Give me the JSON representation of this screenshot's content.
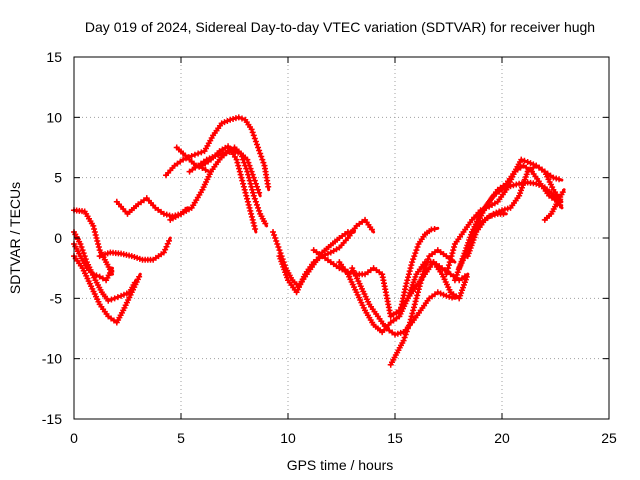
{
  "chart_data": {
    "type": "scatter",
    "title": "Day 019 of 2024, Sidereal Day-to-day VTEC variation (SDTVAR) for receiver hugh",
    "xlabel": "GPS time / hours",
    "ylabel": "SDTVAR / TECUs",
    "xlim": [
      0,
      25
    ],
    "ylim": [
      -15,
      15
    ],
    "xticks": [
      "0",
      "5",
      "10",
      "15",
      "20",
      "25"
    ],
    "yticks": [
      "15",
      "10",
      "5",
      "0",
      "-5",
      "-10",
      "-15"
    ],
    "xtick_values": [
      0,
      5,
      10,
      15,
      20,
      25
    ],
    "ytick_values": [
      15,
      10,
      5,
      0,
      -5,
      -10,
      -15
    ],
    "grid": true,
    "marker": "plus",
    "series_color": "#ff0000",
    "series": [
      {
        "x": [
          0.0,
          0.4,
          0.8,
          1.2,
          1.6,
          2.0,
          2.3,
          2.7,
          3.1
        ],
        "y": [
          -1.5,
          -2.5,
          -4.0,
          -5.5,
          -6.5,
          -7.0,
          -6.0,
          -4.5,
          -3.0
        ]
      },
      {
        "x": [
          0.0,
          0.3,
          0.6,
          1.0,
          1.3,
          1.6,
          1.9,
          2.2,
          2.6,
          2.9
        ],
        "y": [
          0.5,
          -0.5,
          -2.0,
          -3.5,
          -4.5,
          -5.2,
          -5.0,
          -4.8,
          -4.5,
          -3.5
        ]
      },
      {
        "x": [
          0.0,
          0.3,
          0.6,
          0.9,
          1.2,
          1.5,
          1.8
        ],
        "y": [
          -0.5,
          -1.5,
          -2.5,
          -3.0,
          -3.2,
          -3.5,
          -2.5
        ]
      },
      {
        "x": [
          0.0,
          0.5,
          0.9,
          1.2,
          1.5,
          1.8
        ],
        "y": [
          2.3,
          2.2,
          1.0,
          -1.0,
          -2.0,
          -3.0
        ]
      },
      {
        "x": [
          1.2,
          1.7,
          2.2,
          2.7,
          3.2,
          3.7,
          4.2,
          4.5
        ],
        "y": [
          -1.5,
          -1.2,
          -1.3,
          -1.5,
          -1.8,
          -1.8,
          -1.2,
          0.0
        ]
      },
      {
        "x": [
          2.0,
          2.5,
          3.0,
          3.4,
          3.8,
          4.2,
          4.6,
          5.0,
          5.3
        ],
        "y": [
          3.0,
          2.0,
          2.8,
          3.3,
          2.5,
          2.0,
          1.8,
          2.0,
          2.5
        ]
      },
      {
        "x": [
          4.3,
          4.7,
          5.1,
          5.5,
          5.8,
          6.1,
          6.5,
          6.9,
          7.3,
          7.7,
          8.0,
          8.3,
          8.6,
          8.9,
          9.1
        ],
        "y": [
          5.2,
          6.0,
          6.5,
          6.8,
          7.0,
          7.2,
          8.5,
          9.5,
          9.8,
          10.0,
          9.8,
          9.0,
          7.5,
          6.0,
          4.0
        ]
      },
      {
        "x": [
          4.8,
          5.1,
          5.4,
          5.7,
          6.0,
          6.3
        ],
        "y": [
          7.5,
          7.0,
          6.5,
          6.0,
          5.8,
          5.5
        ]
      },
      {
        "x": [
          5.4,
          5.8,
          6.2,
          6.6,
          7.0,
          7.4,
          7.8,
          8.1,
          8.4,
          8.7
        ],
        "y": [
          5.5,
          6.0,
          6.5,
          6.8,
          7.0,
          7.2,
          7.0,
          6.5,
          5.0,
          3.5
        ]
      },
      {
        "x": [
          4.5,
          5.0,
          5.5,
          6.0,
          6.4,
          6.8,
          7.2,
          7.5,
          7.8,
          8.1,
          8.4,
          8.7,
          9.0
        ],
        "y": [
          1.5,
          2.0,
          2.5,
          4.0,
          5.5,
          6.5,
          7.2,
          7.5,
          7.0,
          5.5,
          3.5,
          2.0,
          1.0
        ]
      },
      {
        "x": [
          6.0,
          6.4,
          6.8,
          7.2,
          7.6,
          7.9,
          8.2,
          8.5
        ],
        "y": [
          6.0,
          6.5,
          7.2,
          7.6,
          6.5,
          4.5,
          2.5,
          0.5
        ]
      },
      {
        "x": [
          9.3,
          9.6,
          9.9,
          10.2,
          10.5,
          10.8,
          11.2,
          11.6,
          12.0,
          12.4,
          12.8,
          13.1
        ],
        "y": [
          0.5,
          -1.0,
          -2.5,
          -3.5,
          -4.0,
          -3.2,
          -2.2,
          -1.2,
          -0.6,
          0.0,
          0.5,
          0.5
        ]
      },
      {
        "x": [
          9.6,
          10.0,
          10.4,
          10.8,
          11.2,
          11.6,
          12.0,
          12.4,
          12.8,
          13.2,
          13.6,
          14.0
        ],
        "y": [
          -1.5,
          -3.5,
          -4.5,
          -3.0,
          -2.0,
          -1.5,
          -1.2,
          -0.8,
          0.0,
          1.0,
          1.5,
          0.5
        ]
      },
      {
        "x": [
          11.2,
          11.6,
          12.0,
          12.4,
          12.8,
          13.2,
          13.6,
          14.0,
          14.4,
          14.8,
          15.2,
          15.6,
          16.0,
          16.4,
          16.8,
          17.2,
          17.6,
          18.0,
          18.4
        ],
        "y": [
          -1.0,
          -1.5,
          -2.0,
          -2.5,
          -2.8,
          -3.0,
          -3.0,
          -2.5,
          -3.0,
          -6.5,
          -6.0,
          -5.0,
          -4.0,
          -3.0,
          -2.0,
          -2.5,
          -3.0,
          -3.5,
          -3.0
        ]
      },
      {
        "x": [
          12.4,
          12.8,
          13.2,
          13.6,
          14.0,
          14.4,
          14.8,
          15.2,
          15.6,
          16.0,
          16.4,
          16.8,
          17.2,
          17.6,
          18.0,
          18.4
        ],
        "y": [
          -2.0,
          -3.0,
          -4.5,
          -6.0,
          -7.2,
          -7.8,
          -7.0,
          -6.5,
          -5.0,
          -3.0,
          -2.0,
          -2.0,
          -3.0,
          -4.5,
          -5.0,
          -3.0
        ]
      },
      {
        "x": [
          13.0,
          13.4,
          13.8,
          14.2,
          14.6,
          15.0,
          15.4,
          15.8,
          16.2,
          16.6,
          17.0,
          17.4,
          17.8
        ],
        "y": [
          -2.5,
          -4.0,
          -5.5,
          -6.5,
          -7.5,
          -8.0,
          -7.8,
          -7.0,
          -6.0,
          -5.0,
          -4.5,
          -4.8,
          -5.0
        ]
      },
      {
        "x": [
          14.8,
          15.1,
          15.4,
          15.7,
          16.0,
          16.3,
          16.6,
          17.0,
          17.4,
          17.8
        ],
        "y": [
          -10.5,
          -9.5,
          -8.5,
          -7.0,
          -5.0,
          -3.0,
          -1.5,
          -1.0,
          -1.5,
          -2.0
        ]
      },
      {
        "x": [
          15.2,
          15.5,
          15.8,
          16.1,
          16.4,
          16.7,
          17.0
        ],
        "y": [
          -6.5,
          -4.0,
          -2.0,
          -0.5,
          0.3,
          0.7,
          0.8
        ]
      },
      {
        "x": [
          17.4,
          17.8,
          18.2,
          18.6,
          19.0,
          19.4,
          19.8,
          20.2,
          20.6,
          20.9,
          21.2,
          21.6,
          22.0,
          22.4,
          22.8
        ],
        "y": [
          -3.0,
          -0.5,
          0.5,
          1.5,
          2.3,
          2.6,
          3.0,
          4.0,
          5.5,
          6.5,
          6.3,
          6.0,
          5.5,
          5.0,
          4.8
        ]
      },
      {
        "x": [
          17.8,
          18.2,
          18.6,
          19.0,
          19.4,
          19.8,
          20.2,
          20.6,
          21.0,
          21.4,
          21.8,
          22.2,
          22.6,
          22.8
        ],
        "y": [
          -3.5,
          -1.5,
          0.5,
          2.0,
          3.0,
          4.0,
          4.5,
          5.5,
          6.0,
          5.5,
          4.5,
          3.5,
          3.0,
          2.5
        ]
      },
      {
        "x": [
          18.0,
          18.4,
          18.8,
          19.2,
          19.6,
          20.0,
          20.4,
          20.8,
          21.2,
          21.6,
          22.0,
          22.4,
          22.8
        ],
        "y": [
          -2.5,
          -1.0,
          1.0,
          2.5,
          3.5,
          4.0,
          4.3,
          4.5,
          4.6,
          4.5,
          4.2,
          3.5,
          2.5
        ]
      },
      {
        "x": [
          18.4,
          18.8,
          19.2,
          19.6,
          20.0,
          20.4,
          20.8,
          21.2,
          21.6,
          22.0,
          22.4,
          22.8
        ],
        "y": [
          -1.5,
          0.5,
          1.5,
          2.0,
          2.3,
          2.5,
          3.5,
          5.5,
          6.0,
          5.5,
          4.0,
          3.0
        ]
      },
      {
        "x": [
          18.6,
          19.0,
          19.4,
          19.8,
          20.2
        ],
        "y": [
          0.5,
          1.2,
          1.8,
          2.0,
          2.0
        ]
      },
      {
        "x": [
          22.0,
          22.3,
          22.6,
          22.9
        ],
        "y": [
          1.5,
          2.0,
          3.0,
          4.0
        ]
      }
    ]
  }
}
